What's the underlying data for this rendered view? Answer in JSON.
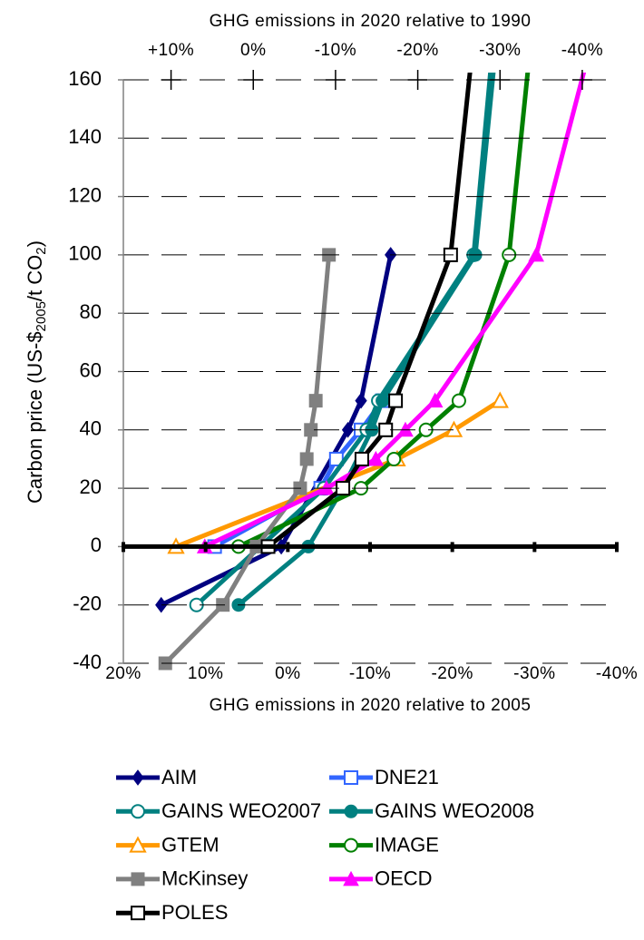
{
  "chart_data": {
    "type": "line",
    "x_label": "GHG emissions in 2020 relative to 2005",
    "x2_label": "GHG emissions in 2020 relative to 1990",
    "y_label": [
      "Carbon price (US-$",
      "2005",
      "/t CO",
      "2",
      ")"
    ],
    "xlim": [
      20,
      -40
    ],
    "xticks": [
      {
        "value": 20,
        "label": "20%"
      },
      {
        "value": 10,
        "label": "10%"
      },
      {
        "value": 0,
        "label": "0%"
      },
      {
        "value": -10,
        "label": "-10%"
      },
      {
        "value": -20,
        "label": "-20%"
      },
      {
        "value": -30,
        "label": "-30%"
      },
      {
        "value": -40,
        "label": "-40%"
      }
    ],
    "x2lim": [
      15.8,
      -44.2
    ],
    "x2ticks": [
      {
        "value": 10,
        "label": "+10%"
      },
      {
        "value": 0,
        "label": "0%"
      },
      {
        "value": -10,
        "label": "-10%"
      },
      {
        "value": -20,
        "label": "-20%"
      },
      {
        "value": -30,
        "label": "-30%"
      },
      {
        "value": -40,
        "label": "-40%"
      }
    ],
    "ylim": [
      -40,
      160
    ],
    "yticks": [
      160,
      140,
      120,
      100,
      80,
      60,
      40,
      20,
      0,
      -20,
      -40
    ],
    "grid": true,
    "legend": "bottom",
    "series": [
      {
        "name": "AIM",
        "color": "#000080",
        "marker": "diamond",
        "x": [
          15.4,
          0.8,
          -7.3,
          -8.9,
          -12.5
        ],
        "values": [
          -20,
          0,
          40,
          50,
          100
        ]
      },
      {
        "name": "DNE21",
        "color": "#3366ff",
        "marker": "square-open",
        "x": [
          8.9,
          -4.0,
          -5.9,
          -8.9,
          -11.5
        ],
        "values": [
          0,
          20,
          30,
          40,
          50
        ]
      },
      {
        "name": "GAINS WEO2007",
        "color": "#008080",
        "marker": "circle-open",
        "x": [
          11.1,
          -4.4,
          -9.6,
          -11.0,
          -22.6,
          -25.2
        ],
        "values": [
          -20,
          20,
          40,
          50,
          100,
          180
        ]
      },
      {
        "name": "GAINS WEO2008",
        "color": "#008080",
        "marker": "circle",
        "x": [
          6.0,
          -2.5,
          -6.7,
          -10.2,
          -11.5,
          -22.8,
          -25.6
        ],
        "values": [
          -20,
          0,
          20,
          40,
          50,
          100,
          180
        ]
      },
      {
        "name": "GTEM",
        "color": "#ff9900",
        "marker": "triangle-open",
        "x": [
          13.6,
          -13.3,
          -20.2,
          -25.8
        ],
        "values": [
          0,
          30,
          40,
          50
        ]
      },
      {
        "name": "IMAGE",
        "color": "#008000",
        "marker": "circle-open",
        "x": [
          6.0,
          -8.9,
          -12.9,
          -16.8,
          -20.8,
          -26.9,
          -29.8
        ],
        "values": [
          0,
          20,
          30,
          40,
          50,
          100,
          180
        ]
      },
      {
        "name": "McKinsey",
        "color": "#808080",
        "marker": "square",
        "x": [
          14.9,
          7.9,
          3.8,
          -1.5,
          -2.3,
          -2.8,
          -3.4,
          -5.0
        ],
        "values": [
          -40,
          -20,
          0,
          20,
          30,
          40,
          50,
          100
        ]
      },
      {
        "name": "OECD",
        "color": "#ff00ff",
        "marker": "triangle",
        "x": [
          10.1,
          -4.7,
          -10.7,
          -14.3,
          -17.9,
          -30.2,
          -37.6
        ],
        "values": [
          0,
          20,
          30,
          40,
          50,
          100,
          180
        ]
      },
      {
        "name": "POLES",
        "color": "#000000",
        "marker": "square-open",
        "x": [
          2.4,
          -6.7,
          -9.0,
          -11.9,
          -13.1,
          -19.8,
          -22.8
        ],
        "values": [
          0,
          20,
          30,
          40,
          50,
          100,
          180
        ]
      }
    ]
  }
}
